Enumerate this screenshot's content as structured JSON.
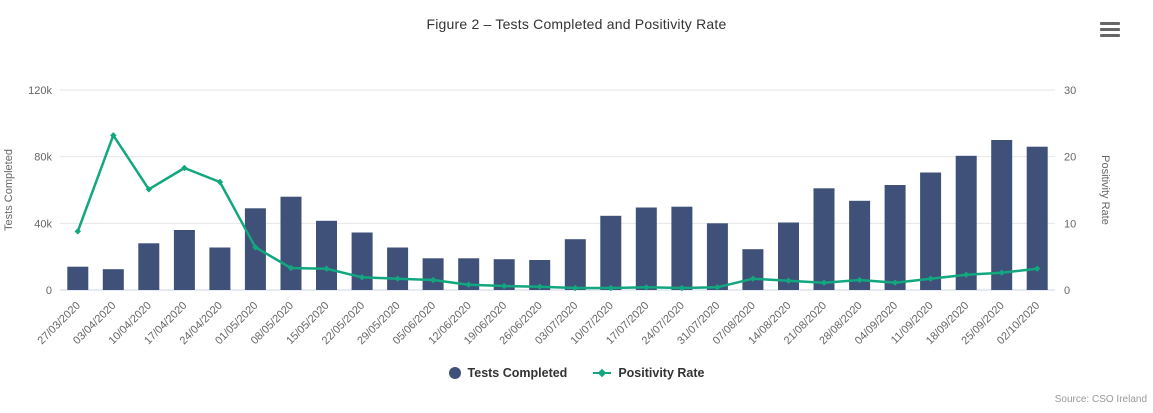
{
  "header": {
    "menu_icon": "hamburger-menu-icon",
    "menu_tooltip": "Chart context menu"
  },
  "footer": {
    "source": "Source: CSO Ireland"
  },
  "colors": {
    "bar": "#3f5178",
    "line": "#12a77e",
    "grid": "#e6e6e6",
    "axis_line": "#ccd6eb",
    "tick_label": "#666666",
    "title": "#333333",
    "source_text": "#999999"
  },
  "chart_data": {
    "type": "combo",
    "title": "Figure 2 – Tests Completed and Positivity Rate",
    "grid": true,
    "legend_position": "bottom",
    "categories": [
      "27/03/2020",
      "03/04/2020",
      "10/04/2020",
      "17/04/2020",
      "24/04/2020",
      "01/05/2020",
      "08/05/2020",
      "15/05/2020",
      "22/05/2020",
      "29/05/2020",
      "05/06/2020",
      "12/06/2020",
      "19/06/2020",
      "26/06/2020",
      "03/07/2020",
      "10/07/2020",
      "17/07/2020",
      "24/07/2020",
      "31/07/2020",
      "07/08/2020",
      "14/08/2020",
      "21/08/2020",
      "28/08/2020",
      "04/09/2020",
      "11/09/2020",
      "18/09/2020",
      "25/09/2020",
      "02/10/2020"
    ],
    "series": [
      {
        "name": "Tests Completed",
        "type": "column",
        "axis": "left",
        "color": "#3f5178",
        "values": [
          14000,
          12500,
          28000,
          36000,
          25500,
          49000,
          56000,
          41500,
          34500,
          25500,
          19000,
          19000,
          18500,
          18000,
          30500,
          44500,
          49500,
          50000,
          40000,
          24500,
          40500,
          61000,
          53500,
          63000,
          70500,
          80500,
          90000,
          86000
        ]
      },
      {
        "name": "Positivity Rate",
        "type": "line",
        "axis": "right",
        "color": "#12a77e",
        "values": [
          8.8,
          23.2,
          15.1,
          18.3,
          16.2,
          6.4,
          3.3,
          3.2,
          1.9,
          1.7,
          1.5,
          0.8,
          0.6,
          0.5,
          0.3,
          0.3,
          0.4,
          0.3,
          0.4,
          1.7,
          1.4,
          1.1,
          1.5,
          1.1,
          1.7,
          2.3,
          2.6,
          3.2
        ]
      }
    ],
    "y_left": {
      "title": "Tests Completed",
      "ticks": [
        "0",
        "40k",
        "80k",
        "120k"
      ],
      "tick_values": [
        0,
        40000,
        80000,
        120000
      ],
      "ylim": [
        0,
        120000
      ]
    },
    "y_right": {
      "title": "Positivity Rate",
      "ticks": [
        "0",
        "10",
        "20",
        "30"
      ],
      "tick_values": [
        0,
        10,
        20,
        30
      ],
      "ylim": [
        0,
        30
      ]
    }
  }
}
